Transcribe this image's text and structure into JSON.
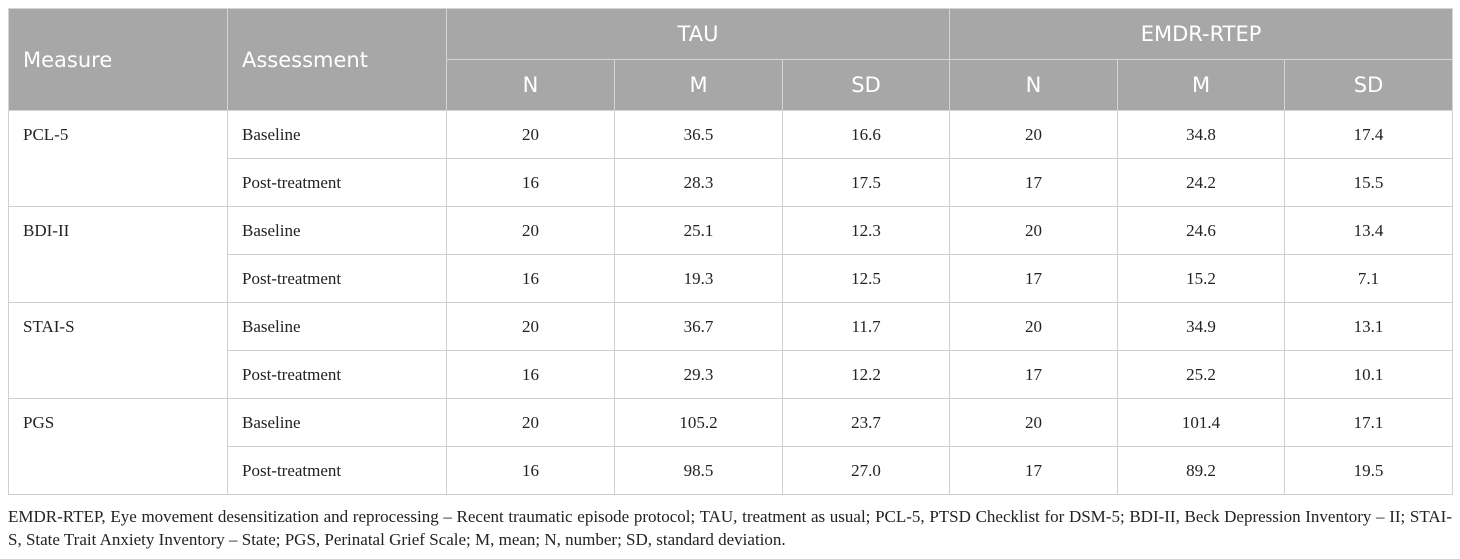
{
  "table": {
    "header": {
      "measure": "Measure",
      "assessment": "Assessment",
      "groups": [
        {
          "name": "TAU",
          "columns": [
            "N",
            "M",
            "SD"
          ]
        },
        {
          "name": "EMDR-RTEP",
          "columns": [
            "N",
            "M",
            "SD"
          ]
        }
      ]
    },
    "rows": [
      {
        "measure": "PCL-5",
        "assessments": [
          {
            "name": "Baseline",
            "values": [
              "20",
              "36.5",
              "16.6",
              "20",
              "34.8",
              "17.4"
            ]
          },
          {
            "name": "Post-treatment",
            "values": [
              "16",
              "28.3",
              "17.5",
              "17",
              "24.2",
              "15.5"
            ]
          }
        ]
      },
      {
        "measure": "BDI-II",
        "assessments": [
          {
            "name": "Baseline",
            "values": [
              "20",
              "25.1",
              "12.3",
              "20",
              "24.6",
              "13.4"
            ]
          },
          {
            "name": "Post-treatment",
            "values": [
              "16",
              "19.3",
              "12.5",
              "17",
              "15.2",
              "7.1"
            ]
          }
        ]
      },
      {
        "measure": "STAI-S",
        "assessments": [
          {
            "name": "Baseline",
            "values": [
              "20",
              "36.7",
              "11.7",
              "20",
              "34.9",
              "13.1"
            ]
          },
          {
            "name": "Post-treatment",
            "values": [
              "16",
              "29.3",
              "12.2",
              "17",
              "25.2",
              "10.1"
            ]
          }
        ]
      },
      {
        "measure": "PGS",
        "assessments": [
          {
            "name": "Baseline",
            "values": [
              "20",
              "105.2",
              "23.7",
              "20",
              "101.4",
              "17.1"
            ]
          },
          {
            "name": "Post-treatment",
            "values": [
              "16",
              "98.5",
              "27.0",
              "17",
              "89.2",
              "19.5"
            ]
          }
        ]
      }
    ],
    "footnote": "EMDR-RTEP, Eye movement desensitization and reprocessing – Recent traumatic episode protocol; TAU, treatment as usual; PCL-5, PTSD Checklist for DSM-5; BDI-II, Beck Depression Inventory – II; STAI-S, State Trait Anxiety Inventory – State; PGS, Perinatal Grief Scale; M, mean; N, number; SD, standard deviation."
  }
}
